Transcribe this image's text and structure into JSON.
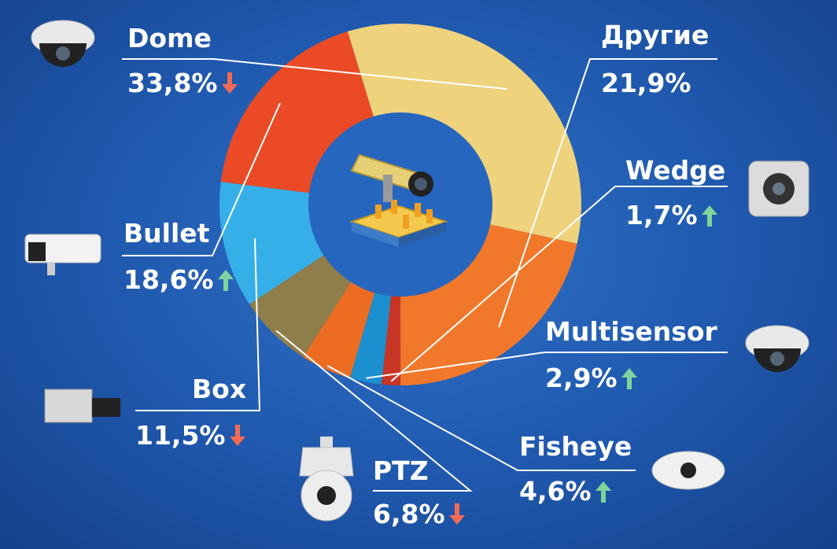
{
  "chart_data": {
    "type": "pie",
    "categories": [
      "Dome",
      "Другие",
      "Wedge",
      "Multisensor",
      "Fisheye",
      "PTZ",
      "Box",
      "Bullet"
    ],
    "values": [
      33.8,
      21.9,
      1.7,
      2.9,
      4.6,
      6.8,
      11.5,
      18.6
    ],
    "value_labels": [
      "33,8%",
      "21,9%",
      "1,7%",
      "2,9%",
      "4,6%",
      "6,8%",
      "11,5%",
      "18,6%"
    ],
    "trend": [
      "down",
      null,
      "up",
      "up",
      "up",
      "down",
      "down",
      "up"
    ],
    "colors": [
      "#efd27c",
      "#f1782a",
      "#c73526",
      "#1c8fcf",
      "#ec6c22",
      "#8f7d4a",
      "#36afe8",
      "#ea4b26"
    ],
    "style": "donut",
    "center_icon": "cctv-camera-icon",
    "trend_colors": {
      "up": "#7fd49b",
      "down": "#f26b55"
    },
    "camera_icons": [
      "dome-camera-icon",
      "wedge-camera-icon",
      "multisensor-camera-icon",
      "fisheye-camera-icon",
      "ptz-camera-icon",
      "box-camera-icon",
      "bullet-camera-icon"
    ]
  }
}
